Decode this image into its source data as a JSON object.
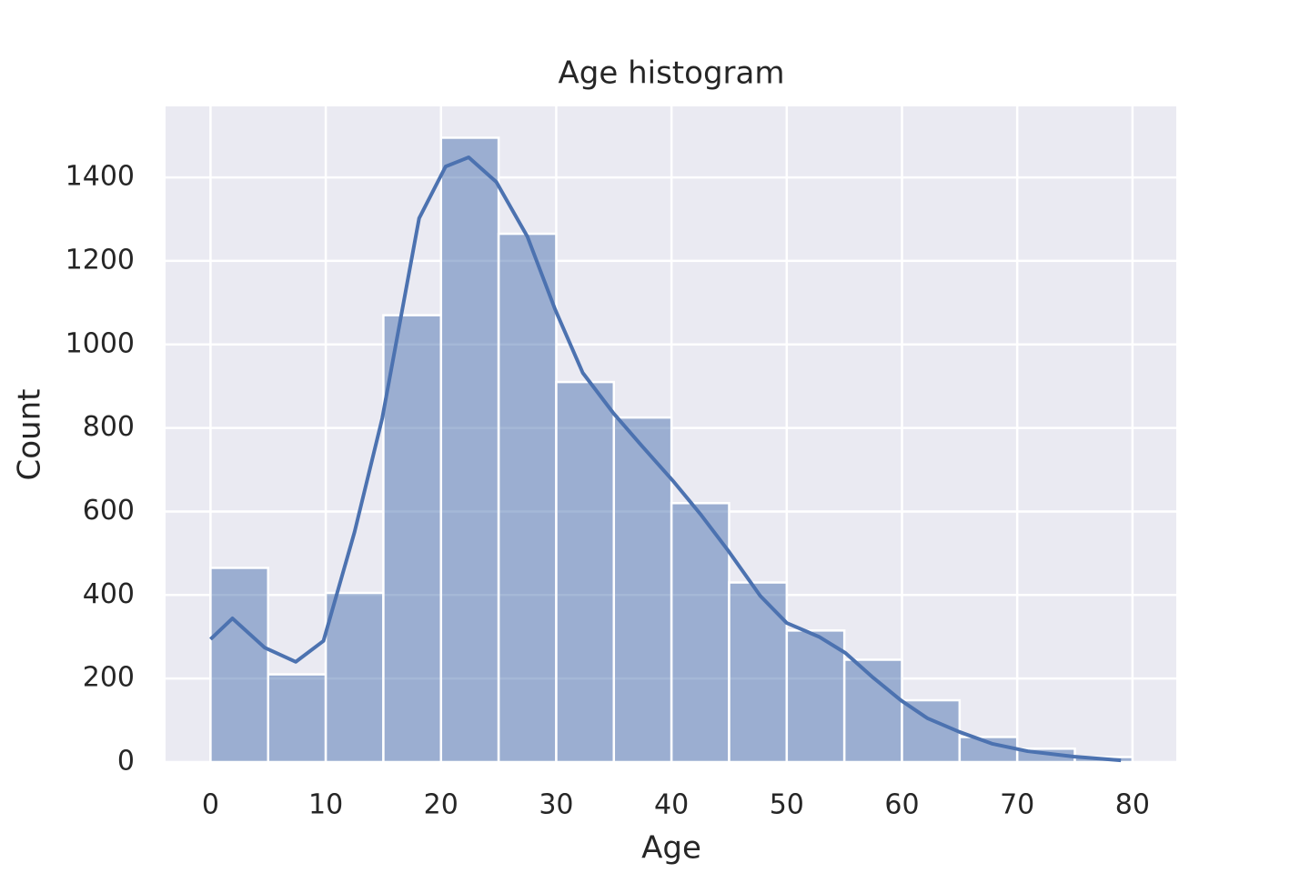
{
  "chart_data": {
    "type": "histogram",
    "title": "Age histogram",
    "x_label": "Age",
    "y_label": "Count",
    "bins": [
      0,
      5,
      10,
      15,
      20,
      25,
      30,
      35,
      40,
      45,
      50,
      55,
      60,
      65,
      70,
      75,
      80
    ],
    "values": [
      465,
      210,
      405,
      1070,
      1495,
      1265,
      910,
      825,
      620,
      430,
      315,
      245,
      148,
      60,
      32,
      12
    ],
    "color": "#4c72b0",
    "alpha": 0.5,
    "background": "#eaeaf2",
    "grid": true,
    "kde": {
      "x": [
        0,
        1.9,
        4.7,
        7.4,
        9.8,
        12.5,
        14.9,
        18.1,
        20.4,
        22.4,
        24.8,
        27.5,
        29.9,
        32.3,
        35,
        37.4,
        40.2,
        42.5,
        44.9,
        47.7,
        50,
        52.8,
        55.1,
        57.5,
        59.9,
        62.2,
        65,
        67.8,
        70.9,
        74.9,
        79
      ],
      "values": [
        294,
        344,
        274,
        240,
        290,
        551,
        823,
        1302,
        1426,
        1448,
        1389,
        1258,
        1084,
        932,
        834,
        758,
        671,
        594,
        507,
        398,
        333,
        300,
        261,
        202,
        148,
        105,
        72,
        44,
        26,
        13,
        4
      ],
      "color": "#4c72b0"
    },
    "xlim": [
      -3.9,
      83.8
    ],
    "ylim": [
      0,
      1570
    ],
    "xticks": [
      0,
      10,
      20,
      30,
      40,
      50,
      60,
      70,
      80
    ],
    "yticks": [
      0,
      200,
      400,
      600,
      800,
      1000,
      1200,
      1400
    ]
  }
}
